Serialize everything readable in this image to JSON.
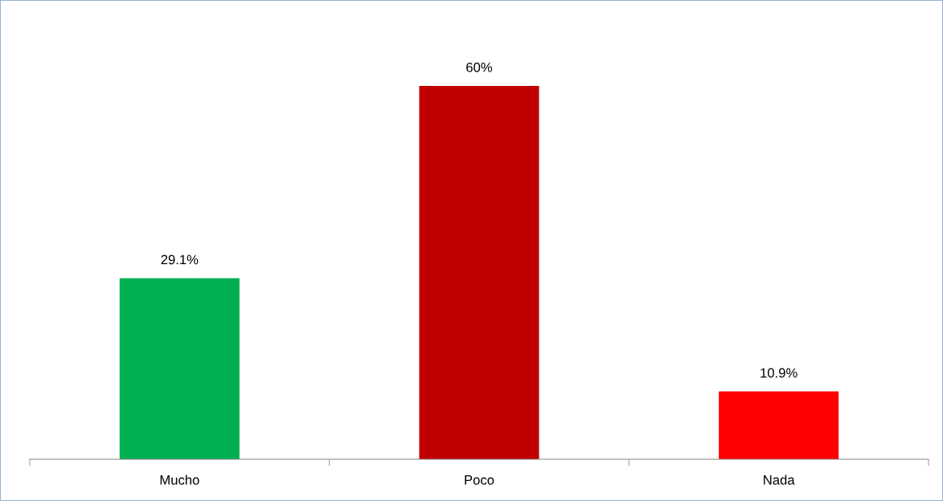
{
  "chart_data": {
    "type": "bar",
    "categories": [
      "Mucho",
      "Poco",
      "Nada"
    ],
    "values": [
      29.1,
      60,
      10.9
    ],
    "colors": [
      "#00b050",
      "#c00000",
      "#ff0000"
    ],
    "value_labels": [
      "29.1%",
      "60%",
      "10.9%"
    ],
    "grid": false,
    "legend": false
  }
}
